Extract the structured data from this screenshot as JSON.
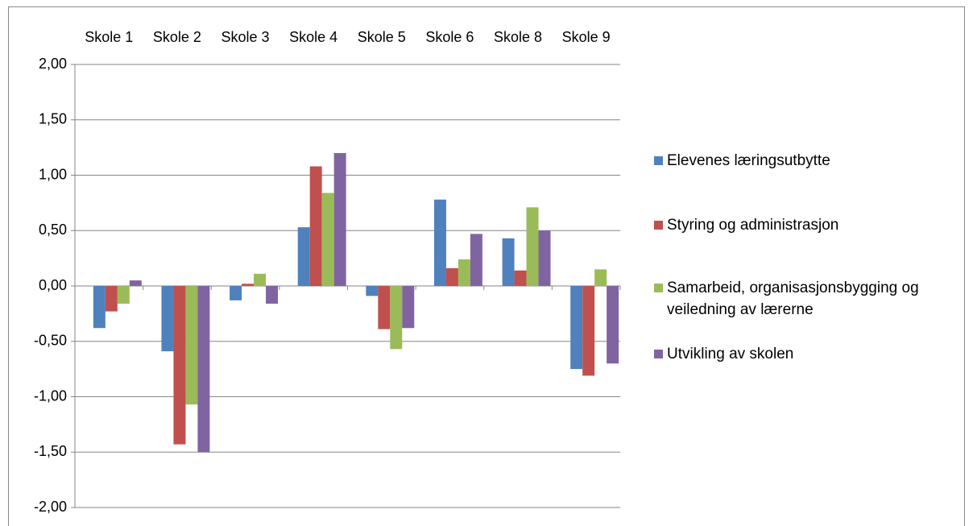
{
  "chart_data": {
    "type": "bar",
    "categories": [
      "Skole 1",
      "Skole 2",
      "Skole 3",
      "Skole 4",
      "Skole 5",
      "Skole 6",
      "Skole 8",
      "Skole 9"
    ],
    "series": [
      {
        "name": "Elevenes læringsutbytte",
        "color": "#4f81bd",
        "values": [
          -0.38,
          -0.59,
          -0.13,
          0.53,
          -0.09,
          0.78,
          0.43,
          -0.75
        ]
      },
      {
        "name": "Styring og administrasjon",
        "color": "#c0504d",
        "values": [
          -0.23,
          -1.43,
          0.02,
          1.08,
          -0.39,
          0.16,
          0.14,
          -0.81
        ]
      },
      {
        "name": "Samarbeid, organisasjonsbygging og veiledning av lærerne",
        "color": "#9bbb59",
        "values": [
          -0.16,
          -1.07,
          0.11,
          0.84,
          -0.57,
          0.24,
          0.71,
          0.15
        ]
      },
      {
        "name": "Utvikling av skolen",
        "color": "#8064a2",
        "values": [
          0.05,
          -1.5,
          -0.16,
          1.2,
          -0.38,
          0.47,
          0.5,
          -0.7
        ]
      }
    ],
    "ylim": [
      -2,
      2
    ],
    "yticks": [
      {
        "value": -2,
        "label": "-2,00"
      },
      {
        "value": -1.5,
        "label": "-1,50"
      },
      {
        "value": -1,
        "label": "-1,00"
      },
      {
        "value": -0.5,
        "label": "-0,50"
      },
      {
        "value": 0,
        "label": "0,00"
      },
      {
        "value": 0.5,
        "label": "0,50"
      },
      {
        "value": 1,
        "label": "1,00"
      },
      {
        "value": 1.5,
        "label": "1,50"
      },
      {
        "value": 2,
        "label": "2,00"
      }
    ],
    "grid": true,
    "legend": "right"
  }
}
